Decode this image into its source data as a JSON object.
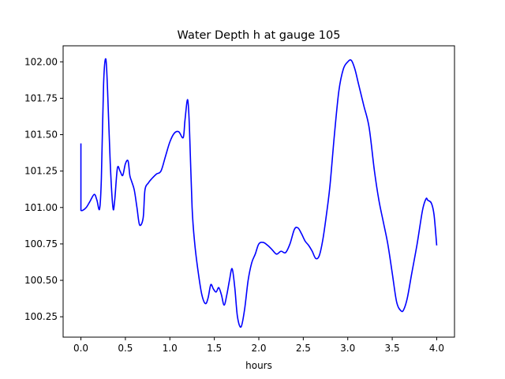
{
  "chart_data": {
    "type": "line",
    "title": "Water Depth h at gauge 105",
    "xlabel": "hours",
    "ylabel": "",
    "xlim": [
      -0.2,
      4.2
    ],
    "ylim": [
      100.11,
      102.11
    ],
    "xticks": [
      0.0,
      0.5,
      1.0,
      1.5,
      2.0,
      2.5,
      3.0,
      3.5,
      4.0
    ],
    "xtick_labels": [
      "0.0",
      "0.5",
      "1.0",
      "1.5",
      "2.0",
      "2.5",
      "3.0",
      "3.5",
      "4.0"
    ],
    "yticks": [
      100.25,
      100.5,
      100.75,
      101.0,
      101.25,
      101.5,
      101.75,
      102.0
    ],
    "ytick_labels": [
      "100.25",
      "100.50",
      "100.75",
      "101.00",
      "101.25",
      "101.50",
      "101.75",
      "102.00"
    ],
    "grid": false,
    "series": [
      {
        "color": "#0000ff",
        "x": [
          0.0,
          0.0,
          0.02,
          0.06,
          0.1,
          0.15,
          0.18,
          0.21,
          0.23,
          0.255,
          0.28,
          0.3,
          0.33,
          0.36,
          0.38,
          0.41,
          0.44,
          0.47,
          0.5,
          0.53,
          0.55,
          0.57,
          0.6,
          0.63,
          0.66,
          0.7,
          0.72,
          0.76,
          0.8,
          0.85,
          0.9,
          0.95,
          1.0,
          1.05,
          1.1,
          1.15,
          1.17,
          1.2,
          1.22,
          1.25,
          1.28,
          1.32,
          1.36,
          1.4,
          1.43,
          1.46,
          1.49,
          1.52,
          1.55,
          1.58,
          1.61,
          1.64,
          1.67,
          1.7,
          1.73,
          1.76,
          1.8,
          1.84,
          1.88,
          1.92,
          1.96,
          2.0,
          2.05,
          2.1,
          2.15,
          2.2,
          2.25,
          2.3,
          2.35,
          2.4,
          2.44,
          2.48,
          2.52,
          2.56,
          2.6,
          2.64,
          2.68,
          2.72,
          2.76,
          2.8,
          2.85,
          2.9,
          2.95,
          3.0,
          3.04,
          3.08,
          3.12,
          3.18,
          3.24,
          3.3,
          3.35,
          3.4,
          3.45,
          3.5,
          3.55,
          3.6,
          3.63,
          3.67,
          3.72,
          3.78,
          3.84,
          3.88,
          3.9,
          3.94,
          3.97,
          4.0
        ],
        "y": [
          101.44,
          100.98,
          100.98,
          101.0,
          101.04,
          101.09,
          101.05,
          100.99,
          101.2,
          101.85,
          102.02,
          101.8,
          101.3,
          101.0,
          101.05,
          101.27,
          101.25,
          101.22,
          101.3,
          101.32,
          101.22,
          101.18,
          101.12,
          101.0,
          100.88,
          100.93,
          101.12,
          101.17,
          101.2,
          101.23,
          101.25,
          101.35,
          101.45,
          101.51,
          101.52,
          101.48,
          101.6,
          101.74,
          101.55,
          101.0,
          100.75,
          100.55,
          100.4,
          100.34,
          100.38,
          100.47,
          100.44,
          100.42,
          100.45,
          100.4,
          100.33,
          100.4,
          100.5,
          100.58,
          100.45,
          100.25,
          100.18,
          100.3,
          100.5,
          100.62,
          100.68,
          100.75,
          100.76,
          100.74,
          100.71,
          100.68,
          100.7,
          100.69,
          100.75,
          100.85,
          100.86,
          100.82,
          100.77,
          100.74,
          100.7,
          100.65,
          100.67,
          100.78,
          100.95,
          101.15,
          101.5,
          101.8,
          101.95,
          102.0,
          102.01,
          101.95,
          101.85,
          101.7,
          101.55,
          101.25,
          101.05,
          100.9,
          100.75,
          100.55,
          100.35,
          100.29,
          100.3,
          100.38,
          100.55,
          100.75,
          100.98,
          101.06,
          101.05,
          101.03,
          100.95,
          100.74
        ]
      }
    ]
  }
}
